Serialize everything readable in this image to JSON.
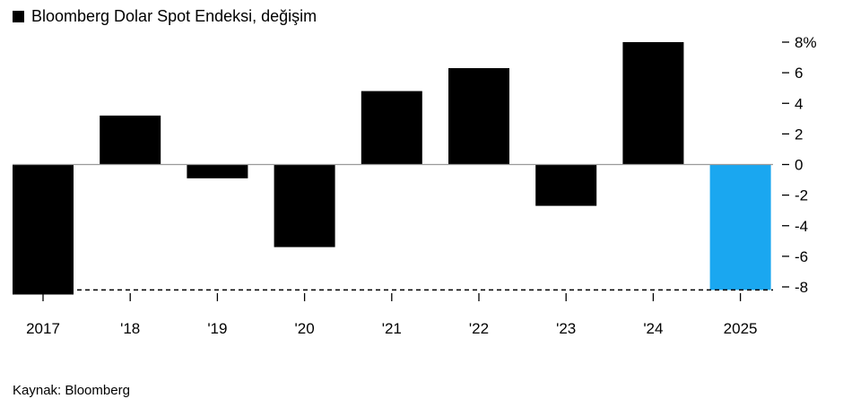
{
  "chart_data": {
    "type": "bar",
    "legend": [
      {
        "label": "Bloomberg Dolar Spot Endeksi, değişim",
        "color": "#000000"
      }
    ],
    "categories": [
      "2017",
      "'18",
      "'19",
      "'20",
      "'21",
      "'22",
      "'23",
      "'24",
      "2025"
    ],
    "values": [
      -8.5,
      3.2,
      -0.9,
      -5.4,
      4.8,
      6.3,
      -2.7,
      8.0,
      -8.2
    ],
    "bar_colors": [
      "#000000",
      "#000000",
      "#000000",
      "#000000",
      "#000000",
      "#000000",
      "#000000",
      "#000000",
      "#1aa7f0"
    ],
    "y_ticks": [
      {
        "value": 8,
        "label": "8%"
      },
      {
        "value": 6,
        "label": "6"
      },
      {
        "value": 4,
        "label": "4"
      },
      {
        "value": 2,
        "label": "2"
      },
      {
        "value": 0,
        "label": "0"
      },
      {
        "value": -2,
        "label": "-2"
      },
      {
        "value": -4,
        "label": "-4"
      },
      {
        "value": -6,
        "label": "-6"
      },
      {
        "value": -8,
        "label": "-8"
      }
    ],
    "ylim": [
      -8.6,
      8.4
    ],
    "reference_line": {
      "value": -8.2,
      "style": "dashed"
    },
    "zero_line": true,
    "grid": false
  },
  "footer": {
    "source": "Kaynak: Bloomberg"
  }
}
